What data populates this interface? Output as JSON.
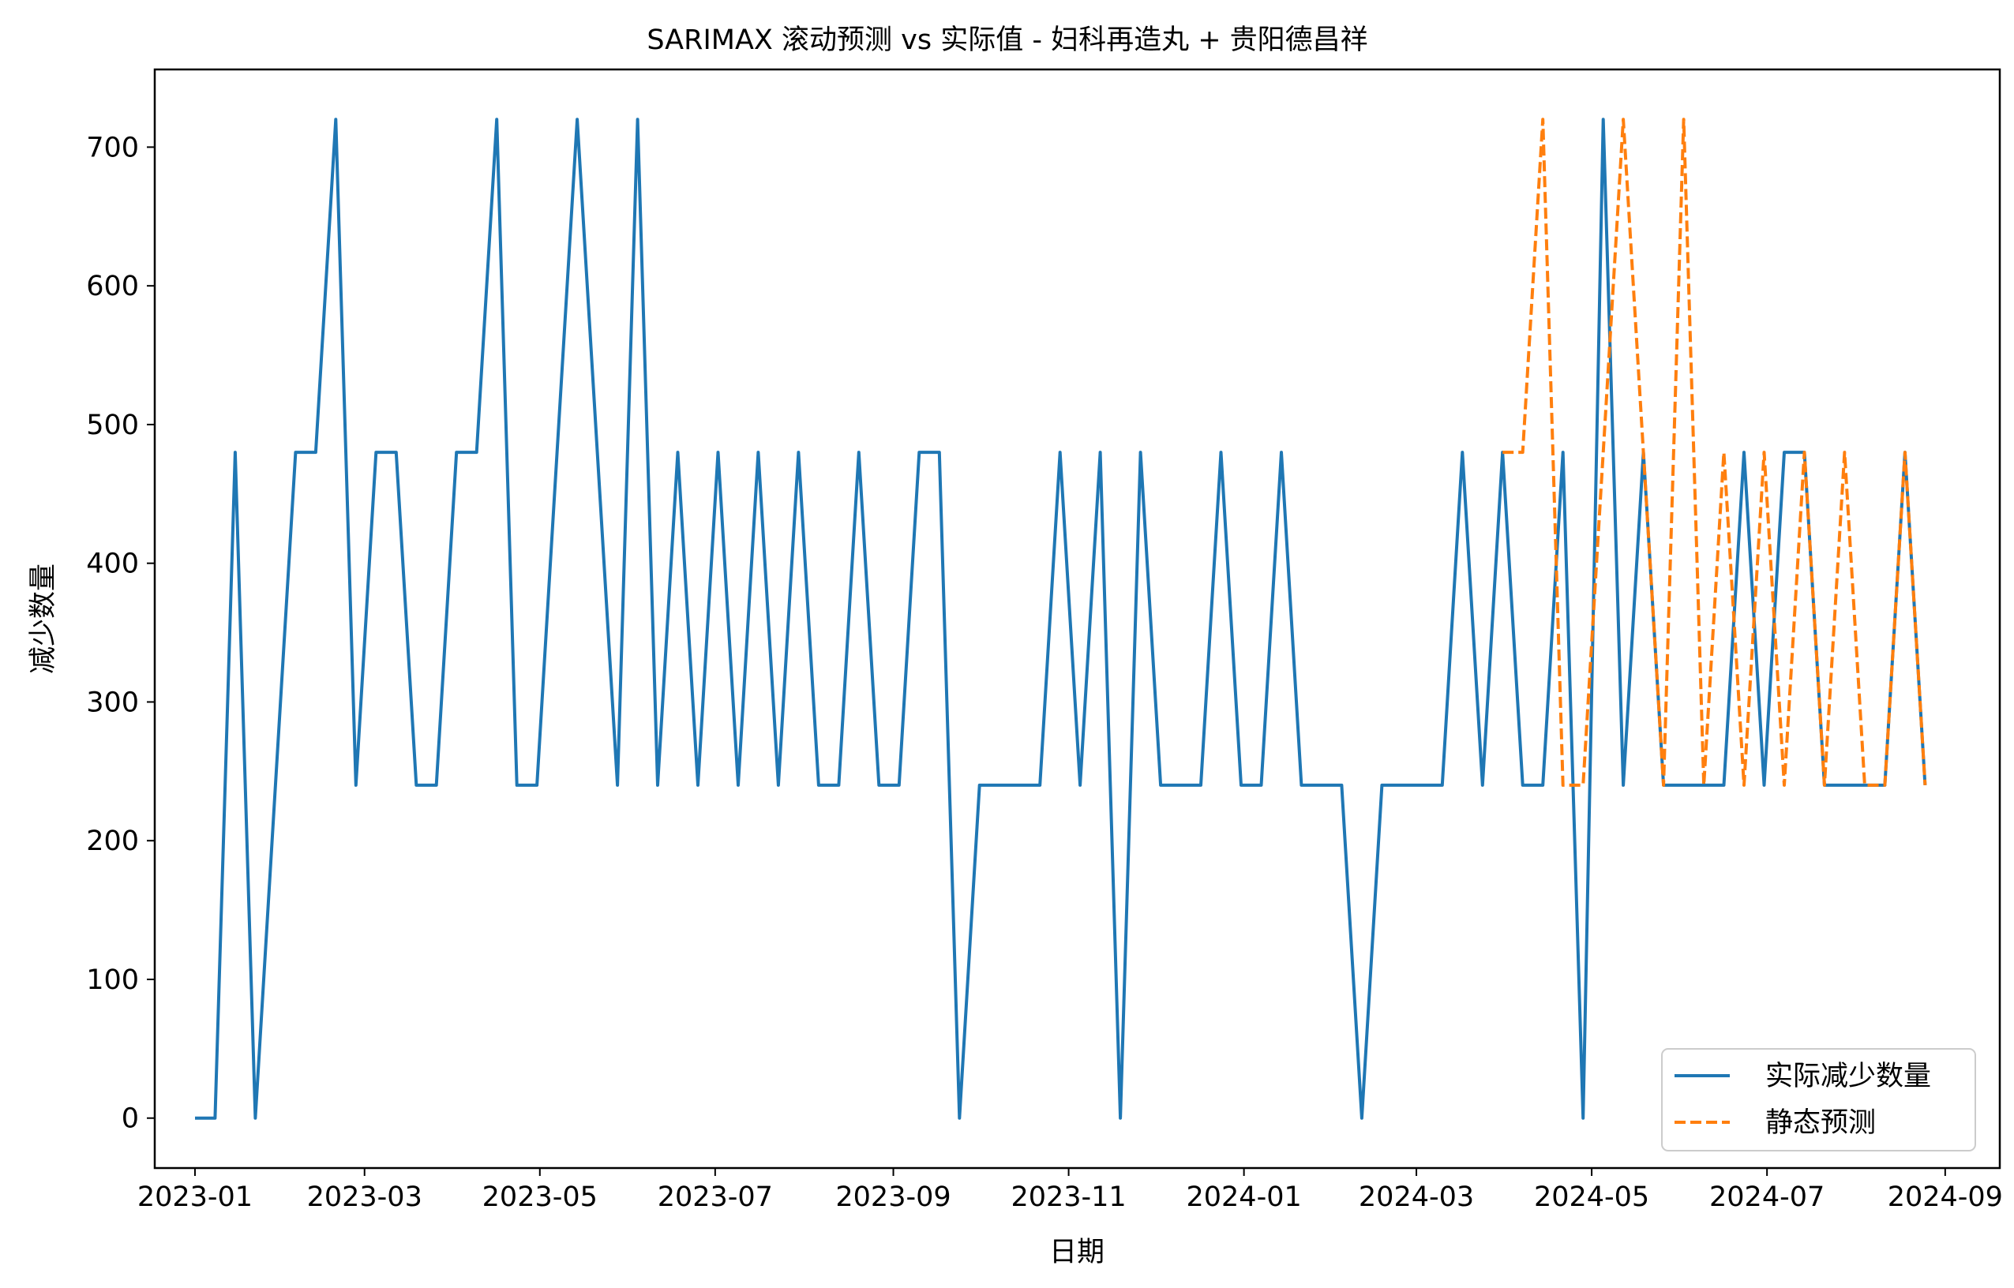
{
  "chart_data": {
    "type": "line",
    "title": "SARIMAX 滚动预测 vs 实际值 - 妇科再造丸 + 贵阳德昌祥",
    "xlabel": "日期",
    "ylabel": "减少数量",
    "xlim": [
      "2022-12-18",
      "2024-09-20"
    ],
    "ylim": [
      -36,
      756
    ],
    "x_ticks": [
      "2023-01",
      "2023-03",
      "2023-05",
      "2023-07",
      "2023-09",
      "2023-11",
      "2024-01",
      "2024-03",
      "2024-05",
      "2024-07",
      "2024-09"
    ],
    "y_ticks": [
      0,
      100,
      200,
      300,
      400,
      500,
      600,
      700
    ],
    "grid": false,
    "legend_position": "lower-right",
    "series": [
      {
        "name": "实际减少数量",
        "color": "#1f77b4",
        "style": "solid",
        "points": [
          [
            "2023-01-01",
            0
          ],
          [
            "2023-01-08",
            0
          ],
          [
            "2023-01-15",
            480
          ],
          [
            "2023-01-22",
            0
          ],
          [
            "2023-01-29",
            240
          ],
          [
            "2023-02-05",
            480
          ],
          [
            "2023-02-12",
            480
          ],
          [
            "2023-02-19",
            720
          ],
          [
            "2023-02-26",
            240
          ],
          [
            "2023-03-05",
            480
          ],
          [
            "2023-03-12",
            480
          ],
          [
            "2023-03-19",
            240
          ],
          [
            "2023-03-26",
            240
          ],
          [
            "2023-04-02",
            480
          ],
          [
            "2023-04-09",
            480
          ],
          [
            "2023-04-16",
            720
          ],
          [
            "2023-04-23",
            240
          ],
          [
            "2023-04-30",
            240
          ],
          [
            "2023-05-07",
            480
          ],
          [
            "2023-05-14",
            720
          ],
          [
            "2023-05-21",
            480
          ],
          [
            "2023-05-28",
            240
          ],
          [
            "2023-06-04",
            720
          ],
          [
            "2023-06-11",
            240
          ],
          [
            "2023-06-18",
            480
          ],
          [
            "2023-06-25",
            240
          ],
          [
            "2023-07-02",
            480
          ],
          [
            "2023-07-09",
            240
          ],
          [
            "2023-07-16",
            480
          ],
          [
            "2023-07-23",
            240
          ],
          [
            "2023-07-30",
            480
          ],
          [
            "2023-08-06",
            240
          ],
          [
            "2023-08-13",
            240
          ],
          [
            "2023-08-20",
            480
          ],
          [
            "2023-08-27",
            240
          ],
          [
            "2023-09-03",
            240
          ],
          [
            "2023-09-10",
            480
          ],
          [
            "2023-09-17",
            480
          ],
          [
            "2023-09-24",
            0
          ],
          [
            "2023-10-01",
            240
          ],
          [
            "2023-10-08",
            240
          ],
          [
            "2023-10-15",
            240
          ],
          [
            "2023-10-22",
            240
          ],
          [
            "2023-10-29",
            480
          ],
          [
            "2023-11-05",
            240
          ],
          [
            "2023-11-12",
            480
          ],
          [
            "2023-11-19",
            0
          ],
          [
            "2023-11-26",
            480
          ],
          [
            "2023-12-03",
            240
          ],
          [
            "2023-12-10",
            240
          ],
          [
            "2023-12-17",
            240
          ],
          [
            "2023-12-24",
            480
          ],
          [
            "2023-12-31",
            240
          ],
          [
            "2024-01-07",
            240
          ],
          [
            "2024-01-14",
            480
          ],
          [
            "2024-01-21",
            240
          ],
          [
            "2024-01-28",
            240
          ],
          [
            "2024-02-04",
            240
          ],
          [
            "2024-02-11",
            0
          ],
          [
            "2024-02-18",
            240
          ],
          [
            "2024-02-25",
            240
          ],
          [
            "2024-03-03",
            240
          ],
          [
            "2024-03-10",
            240
          ],
          [
            "2024-03-17",
            480
          ],
          [
            "2024-03-24",
            240
          ],
          [
            "2024-03-31",
            480
          ],
          [
            "2024-04-07",
            240
          ],
          [
            "2024-04-14",
            240
          ],
          [
            "2024-04-21",
            480
          ],
          [
            "2024-04-28",
            0
          ],
          [
            "2024-05-05",
            720
          ],
          [
            "2024-05-12",
            240
          ],
          [
            "2024-05-19",
            480
          ],
          [
            "2024-05-26",
            240
          ],
          [
            "2024-06-02",
            240
          ],
          [
            "2024-06-09",
            240
          ],
          [
            "2024-06-16",
            240
          ],
          [
            "2024-06-23",
            480
          ],
          [
            "2024-06-30",
            240
          ],
          [
            "2024-07-07",
            480
          ],
          [
            "2024-07-14",
            480
          ],
          [
            "2024-07-21",
            240
          ],
          [
            "2024-07-28",
            240
          ],
          [
            "2024-08-04",
            240
          ],
          [
            "2024-08-11",
            240
          ],
          [
            "2024-08-18",
            480
          ],
          [
            "2024-08-25",
            240
          ]
        ]
      },
      {
        "name": "静态预测",
        "color": "#ff7f0e",
        "style": "dashed",
        "points": [
          [
            "2024-03-31",
            480
          ],
          [
            "2024-04-07",
            480
          ],
          [
            "2024-04-14",
            720
          ],
          [
            "2024-04-21",
            240
          ],
          [
            "2024-04-28",
            240
          ],
          [
            "2024-05-05",
            480
          ],
          [
            "2024-05-12",
            720
          ],
          [
            "2024-05-19",
            480
          ],
          [
            "2024-05-26",
            240
          ],
          [
            "2024-06-02",
            720
          ],
          [
            "2024-06-09",
            240
          ],
          [
            "2024-06-16",
            480
          ],
          [
            "2024-06-23",
            240
          ],
          [
            "2024-06-30",
            480
          ],
          [
            "2024-07-07",
            240
          ],
          [
            "2024-07-14",
            480
          ],
          [
            "2024-07-21",
            240
          ],
          [
            "2024-07-28",
            480
          ],
          [
            "2024-08-04",
            240
          ],
          [
            "2024-08-11",
            240
          ],
          [
            "2024-08-18",
            480
          ],
          [
            "2024-08-25",
            240
          ]
        ]
      }
    ]
  }
}
